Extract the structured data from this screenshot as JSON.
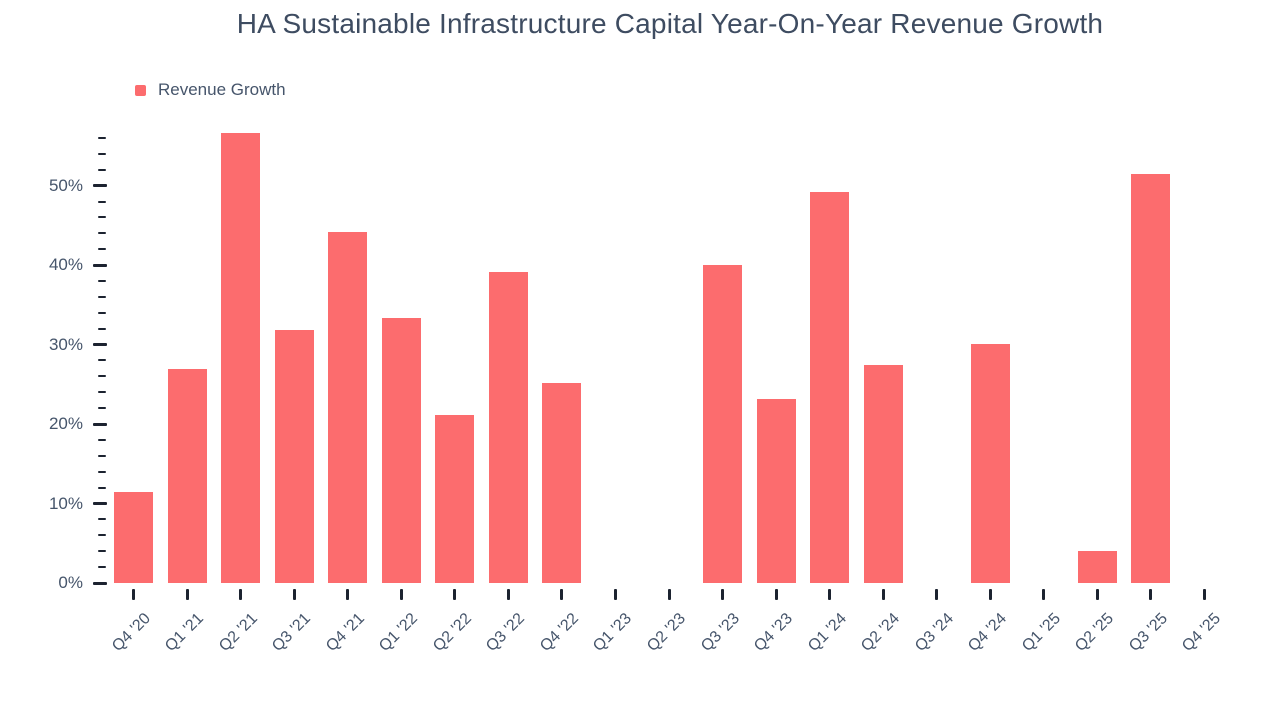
{
  "title": "HA Sustainable Infrastructure Capital Year-On-Year Revenue Growth",
  "legend": [
    {
      "label": "Revenue Growth",
      "color": "#fc6c6e"
    }
  ],
  "colors": {
    "bar": "#fc6c6e",
    "text": "#46556b",
    "title_text": "#3e4c61",
    "tick": "#1c2330",
    "background": "#ffffff"
  },
  "chart_data": {
    "type": "bar",
    "title": "HA Sustainable Infrastructure Capital Year-On-Year Revenue Growth",
    "xlabel": "",
    "ylabel": "",
    "categories": [
      "Q4 '20",
      "Q1 '21",
      "Q2 '21",
      "Q3 '21",
      "Q4 '21",
      "Q1 '22",
      "Q2 '22",
      "Q3 '22",
      "Q4 '22",
      "Q1 '23",
      "Q2 '23",
      "Q3 '23",
      "Q4 '23",
      "Q1 '24",
      "Q2 '24",
      "Q3 '24",
      "Q4 '24",
      "Q1 '25",
      "Q2 '25",
      "Q3 '25",
      "Q4 '25"
    ],
    "series": [
      {
        "name": "Revenue Growth",
        "values": [
          11.5,
          26.9,
          56.6,
          31.8,
          44.2,
          33.3,
          21.2,
          39.1,
          25.2,
          null,
          null,
          40.0,
          23.1,
          49.2,
          27.4,
          null,
          30.1,
          null,
          4.0,
          51.5,
          null
        ]
      }
    ],
    "unit": "%",
    "ylim": [
      0,
      57
    ],
    "ytick_majors": [
      0,
      10,
      20,
      30,
      40,
      50
    ],
    "ytick_labels": [
      "0%",
      "10%",
      "20%",
      "30%",
      "40%",
      "50%"
    ],
    "ytick_minor_step": 2,
    "ytick_max": 56,
    "grid": false,
    "axis_lines": false,
    "legend_position": "top-left"
  }
}
